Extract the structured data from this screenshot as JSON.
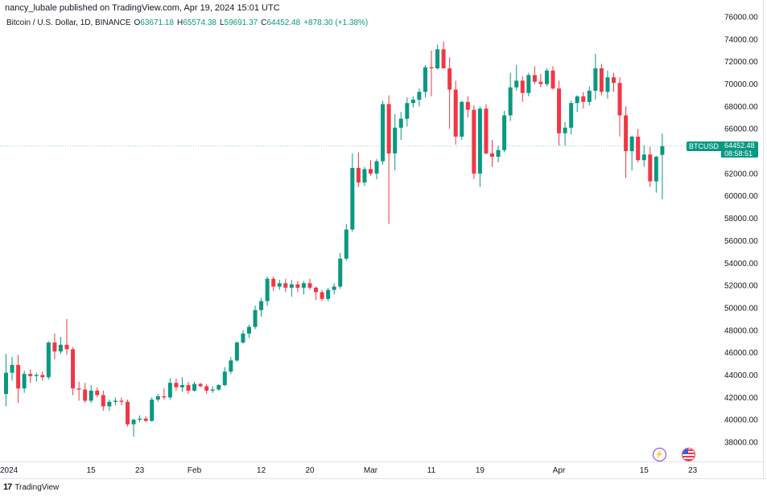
{
  "header": {
    "published_line": "nancy_lubale published on TradingView.com, Apr 19, 2024 15:01 UTC"
  },
  "legend": {
    "symbol": "Bitcoin / U.S. Dollar, 1D, BINANCE",
    "o_label": "O",
    "o_value": "63671.18",
    "h_label": "H",
    "h_value": "65574.38",
    "l_label": "L",
    "l_value": "59691.37",
    "c_label": "C",
    "c_value": "64452.48",
    "change": "+878.30 (+1.38%)"
  },
  "price_tag": {
    "symbol": "BTCUSD",
    "price": "64452.48",
    "countdown": "08:58:51"
  },
  "footer": {
    "logo": "17",
    "brand": "TradingView"
  },
  "icons": {
    "events": "lightning-icon",
    "flag": "us-flag-icon"
  },
  "colors": {
    "up": "#089981",
    "down": "#f23645"
  },
  "chart_data": {
    "type": "candlestick",
    "title": "Bitcoin / U.S. Dollar, 1D, BINANCE",
    "ylim": [
      36500,
      76000
    ],
    "yticks": [
      38000,
      40000,
      42000,
      44000,
      46000,
      48000,
      50000,
      52000,
      54000,
      56000,
      58000,
      60000,
      62000,
      64000,
      66000,
      68000,
      70000,
      72000,
      74000,
      76000
    ],
    "ytick_labels": [
      "38000.00",
      "40000.00",
      "42000.00",
      "44000.00",
      "46000.00",
      "48000.00",
      "50000.00",
      "52000.00",
      "54000.00",
      "56000.00",
      "58000.00",
      "60000.00",
      "62000.00",
      "64000.00",
      "66000.00",
      "68000.00",
      "70000.00",
      "72000.00",
      "74000.00",
      "76000.00"
    ],
    "xtick_labels": [
      {
        "label": "2024",
        "day": 0
      },
      {
        "label": "15",
        "day": 14
      },
      {
        "label": "23",
        "day": 22
      },
      {
        "label": "Feb",
        "day": 31
      },
      {
        "label": "12",
        "day": 42
      },
      {
        "label": "20",
        "day": 50
      },
      {
        "label": "Mar",
        "day": 60
      },
      {
        "label": "11",
        "day": 70
      },
      {
        "label": "19",
        "day": 78
      },
      {
        "label": "Apr",
        "day": 91
      },
      {
        "label": "15",
        "day": 105
      },
      {
        "label": "23",
        "day": 113
      }
    ],
    "x_start_date": "2024-01-01",
    "candles": [
      {
        "o": 42300,
        "h": 45900,
        "l": 41200,
        "c": 44200
      },
      {
        "o": 44200,
        "h": 45600,
        "l": 43500,
        "c": 44900
      },
      {
        "o": 44900,
        "h": 45800,
        "l": 41500,
        "c": 42800
      },
      {
        "o": 42800,
        "h": 44400,
        "l": 42400,
        "c": 44100
      },
      {
        "o": 44100,
        "h": 44500,
        "l": 43300,
        "c": 43900
      },
      {
        "o": 43900,
        "h": 44200,
        "l": 43400,
        "c": 44000
      },
      {
        "o": 44000,
        "h": 44300,
        "l": 43500,
        "c": 43800
      },
      {
        "o": 43800,
        "h": 47000,
        "l": 43600,
        "c": 46900
      },
      {
        "o": 46900,
        "h": 47700,
        "l": 45400,
        "c": 46100
      },
      {
        "o": 46100,
        "h": 47400,
        "l": 45900,
        "c": 46700
      },
      {
        "o": 46700,
        "h": 49000,
        "l": 45800,
        "c": 46300
      },
      {
        "o": 46300,
        "h": 46500,
        "l": 42200,
        "c": 42800
      },
      {
        "o": 42800,
        "h": 43400,
        "l": 41700,
        "c": 42700
      },
      {
        "o": 42700,
        "h": 43300,
        "l": 41500,
        "c": 41700
      },
      {
        "o": 41700,
        "h": 43100,
        "l": 41500,
        "c": 42600
      },
      {
        "o": 42600,
        "h": 42900,
        "l": 42000,
        "c": 42200
      },
      {
        "o": 42200,
        "h": 42600,
        "l": 40800,
        "c": 41200
      },
      {
        "o": 41200,
        "h": 41800,
        "l": 40800,
        "c": 41600
      },
      {
        "o": 41600,
        "h": 42000,
        "l": 41300,
        "c": 41700
      },
      {
        "o": 41700,
        "h": 42000,
        "l": 41300,
        "c": 41600
      },
      {
        "o": 41600,
        "h": 41800,
        "l": 39400,
        "c": 39600
      },
      {
        "o": 39600,
        "h": 40100,
        "l": 38500,
        "c": 40000
      },
      {
        "o": 40000,
        "h": 40400,
        "l": 39800,
        "c": 40100
      },
      {
        "o": 40100,
        "h": 40300,
        "l": 39800,
        "c": 39900
      },
      {
        "o": 39900,
        "h": 42000,
        "l": 39800,
        "c": 41800
      },
      {
        "o": 41800,
        "h": 42300,
        "l": 41600,
        "c": 42100
      },
      {
        "o": 42100,
        "h": 42800,
        "l": 41800,
        "c": 42000
      },
      {
        "o": 42000,
        "h": 43700,
        "l": 41800,
        "c": 43300
      },
      {
        "o": 43300,
        "h": 43700,
        "l": 42600,
        "c": 42900
      },
      {
        "o": 42900,
        "h": 43800,
        "l": 42500,
        "c": 43100
      },
      {
        "o": 43100,
        "h": 43400,
        "l": 42300,
        "c": 42600
      },
      {
        "o": 42600,
        "h": 43400,
        "l": 42500,
        "c": 43200
      },
      {
        "o": 43200,
        "h": 43300,
        "l": 42900,
        "c": 43000
      },
      {
        "o": 43000,
        "h": 43200,
        "l": 42300,
        "c": 42600
      },
      {
        "o": 42600,
        "h": 43000,
        "l": 42400,
        "c": 42700
      },
      {
        "o": 42700,
        "h": 43200,
        "l": 42600,
        "c": 43100
      },
      {
        "o": 43100,
        "h": 44700,
        "l": 43000,
        "c": 44300
      },
      {
        "o": 44300,
        "h": 45600,
        "l": 44100,
        "c": 45300
      },
      {
        "o": 45300,
        "h": 47000,
        "l": 45200,
        "c": 46900
      },
      {
        "o": 46900,
        "h": 48000,
        "l": 46800,
        "c": 47700
      },
      {
        "o": 47700,
        "h": 48500,
        "l": 47300,
        "c": 48300
      },
      {
        "o": 48300,
        "h": 50200,
        "l": 48100,
        "c": 49800
      },
      {
        "o": 49800,
        "h": 50900,
        "l": 49200,
        "c": 50600
      },
      {
        "o": 50600,
        "h": 52800,
        "l": 50200,
        "c": 52600
      },
      {
        "o": 52600,
        "h": 52800,
        "l": 51500,
        "c": 51900
      },
      {
        "o": 51900,
        "h": 52500,
        "l": 51600,
        "c": 52200
      },
      {
        "o": 52200,
        "h": 52600,
        "l": 51400,
        "c": 51800
      },
      {
        "o": 51800,
        "h": 52500,
        "l": 51000,
        "c": 52100
      },
      {
        "o": 52100,
        "h": 52400,
        "l": 51400,
        "c": 51800
      },
      {
        "o": 51800,
        "h": 52400,
        "l": 51200,
        "c": 52200
      },
      {
        "o": 52200,
        "h": 52600,
        "l": 51600,
        "c": 51800
      },
      {
        "o": 51800,
        "h": 51900,
        "l": 50700,
        "c": 51400
      },
      {
        "o": 51400,
        "h": 51600,
        "l": 50600,
        "c": 50800
      },
      {
        "o": 50800,
        "h": 51800,
        "l": 50600,
        "c": 51600
      },
      {
        "o": 51600,
        "h": 52200,
        "l": 51200,
        "c": 51900
      },
      {
        "o": 51900,
        "h": 54900,
        "l": 51700,
        "c": 54400
      },
      {
        "o": 54400,
        "h": 57500,
        "l": 54200,
        "c": 57000
      },
      {
        "o": 57000,
        "h": 63800,
        "l": 56800,
        "c": 62500
      },
      {
        "o": 62500,
        "h": 63900,
        "l": 60800,
        "c": 61200
      },
      {
        "o": 61200,
        "h": 62600,
        "l": 60900,
        "c": 62400
      },
      {
        "o": 62400,
        "h": 63200,
        "l": 61800,
        "c": 62000
      },
      {
        "o": 62000,
        "h": 63300,
        "l": 61500,
        "c": 63100
      },
      {
        "o": 63100,
        "h": 68500,
        "l": 62800,
        "c": 68200
      },
      {
        "o": 68200,
        "h": 69000,
        "l": 57500,
        "c": 63800
      },
      {
        "o": 63800,
        "h": 67300,
        "l": 62300,
        "c": 66100
      },
      {
        "o": 66100,
        "h": 67500,
        "l": 65000,
        "c": 66900
      },
      {
        "o": 66900,
        "h": 68800,
        "l": 66200,
        "c": 68300
      },
      {
        "o": 68300,
        "h": 68900,
        "l": 67900,
        "c": 68600
      },
      {
        "o": 68600,
        "h": 69600,
        "l": 68000,
        "c": 69300
      },
      {
        "o": 69300,
        "h": 71700,
        "l": 68800,
        "c": 71500
      },
      {
        "o": 71500,
        "h": 73000,
        "l": 68900,
        "c": 71400
      },
      {
        "o": 71400,
        "h": 73500,
        "l": 71300,
        "c": 73100
      },
      {
        "o": 73100,
        "h": 73800,
        "l": 71400,
        "c": 71400
      },
      {
        "o": 71400,
        "h": 72400,
        "l": 66000,
        "c": 69500
      },
      {
        "o": 69500,
        "h": 70300,
        "l": 64600,
        "c": 65300
      },
      {
        "o": 65300,
        "h": 68500,
        "l": 65000,
        "c": 68400
      },
      {
        "o": 68400,
        "h": 68900,
        "l": 67000,
        "c": 67700
      },
      {
        "o": 67700,
        "h": 68100,
        "l": 61500,
        "c": 62000
      },
      {
        "o": 62000,
        "h": 68000,
        "l": 60800,
        "c": 67800
      },
      {
        "o": 67800,
        "h": 68200,
        "l": 63700,
        "c": 63800
      },
      {
        "o": 63800,
        "h": 65000,
        "l": 62600,
        "c": 63500
      },
      {
        "o": 63500,
        "h": 64500,
        "l": 63000,
        "c": 64100
      },
      {
        "o": 64100,
        "h": 67600,
        "l": 63900,
        "c": 67200
      },
      {
        "o": 67200,
        "h": 71000,
        "l": 66700,
        "c": 69700
      },
      {
        "o": 69700,
        "h": 71700,
        "l": 69400,
        "c": 70300
      },
      {
        "o": 70300,
        "h": 70700,
        "l": 68400,
        "c": 69200
      },
      {
        "o": 69200,
        "h": 71000,
        "l": 68900,
        "c": 70800
      },
      {
        "o": 70800,
        "h": 71600,
        "l": 70000,
        "c": 70200
      },
      {
        "o": 70200,
        "h": 70900,
        "l": 69700,
        "c": 70000
      },
      {
        "o": 70000,
        "h": 71400,
        "l": 69800,
        "c": 71200
      },
      {
        "o": 71200,
        "h": 71600,
        "l": 69500,
        "c": 69600
      },
      {
        "o": 69600,
        "h": 70300,
        "l": 64500,
        "c": 65600
      },
      {
        "o": 65600,
        "h": 66600,
        "l": 64500,
        "c": 66100
      },
      {
        "o": 66100,
        "h": 68500,
        "l": 65500,
        "c": 68300
      },
      {
        "o": 68300,
        "h": 69000,
        "l": 67500,
        "c": 68900
      },
      {
        "o": 68900,
        "h": 69300,
        "l": 67800,
        "c": 68400
      },
      {
        "o": 68400,
        "h": 69800,
        "l": 68100,
        "c": 69400
      },
      {
        "o": 69400,
        "h": 72700,
        "l": 68600,
        "c": 71400
      },
      {
        "o": 71400,
        "h": 71800,
        "l": 69000,
        "c": 69300
      },
      {
        "o": 69300,
        "h": 71200,
        "l": 68700,
        "c": 70600
      },
      {
        "o": 70600,
        "h": 71000,
        "l": 69300,
        "c": 70100
      },
      {
        "o": 70100,
        "h": 70600,
        "l": 65300,
        "c": 67200
      },
      {
        "o": 67200,
        "h": 68000,
        "l": 61600,
        "c": 64000
      },
      {
        "o": 64000,
        "h": 65400,
        "l": 62300,
        "c": 65300
      },
      {
        "o": 65300,
        "h": 66000,
        "l": 63000,
        "c": 63200
      },
      {
        "o": 63200,
        "h": 64500,
        "l": 62600,
        "c": 63700
      },
      {
        "o": 63700,
        "h": 64400,
        "l": 60800,
        "c": 61300
      },
      {
        "o": 61300,
        "h": 63600,
        "l": 60300,
        "c": 63500
      },
      {
        "o": 63671,
        "h": 65574,
        "l": 59691,
        "c": 64452
      }
    ]
  }
}
